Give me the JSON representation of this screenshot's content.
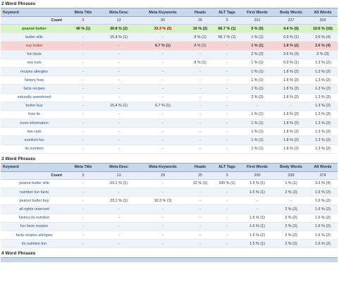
{
  "sections": [
    {
      "title": "2 Word Phrases",
      "headers": [
        "Keyword",
        "Meta Title",
        "Meta Desc",
        "Meta Keywords",
        "Heads",
        "ALT Tags",
        "First Words",
        "Body Words",
        "All Words"
      ],
      "count": {
        "label": "Count",
        "values": [
          "5",
          "13",
          "30",
          "25",
          "3",
          "201",
          "227",
          "303"
        ]
      },
      "rows": [
        {
          "keyword": "peanut butter",
          "values": [
            "40 % (1)",
            "30.8 % (2)",
            "33.3 % (5)",
            "16 % (2)",
            "66.7 % (1)",
            "5 % (5)",
            "4.4 % (5)",
            "10.6 % (16)"
          ],
          "style": "green"
        },
        {
          "keyword": "butter ville",
          "values": [
            "-",
            "15.4 % (1)",
            "-",
            "8 % (1)",
            "66.7 % (1)",
            "1 % (1)",
            "0.9 % (1)",
            "2.6 % (4)"
          ],
          "style": ""
        },
        {
          "keyword": "soy butter",
          "values": [
            "-",
            "-",
            "6.7 % (1)",
            "8 % (1)",
            "-",
            "1 % (1)",
            "1.8 % (2)",
            "2.6 % (4)"
          ],
          "style": "pink"
        },
        {
          "keyword": "fun facts",
          "values": [
            "-",
            "-",
            "-",
            "-",
            "-",
            "2 % (2)",
            "2.6 % (3)",
            "2 % (3)"
          ],
          "style": ""
        },
        {
          "keyword": "soy nuts",
          "values": [
            "-",
            "-",
            "-",
            "8 % (1)",
            "-",
            "1 % (1)",
            "0.9 % (1)",
            "1.3 % (2)"
          ],
          "style": ""
        },
        {
          "keyword": "recipes allergies",
          "values": [
            "-",
            "-",
            "-",
            "-",
            "-",
            "1 % (1)",
            "1.8 % (2)",
            "1.3 % (2)"
          ],
          "style": ""
        },
        {
          "keyword": "history how",
          "values": [
            "-",
            "-",
            "-",
            "-",
            "-",
            "1 % (1)",
            "1.8 % (2)",
            "1.3 % (2)"
          ],
          "style": ""
        },
        {
          "keyword": "facts recipes",
          "values": [
            "-",
            "-",
            "-",
            "-",
            "-",
            "1 % (1)",
            "1.8 % (2)",
            "1.3 % (2)"
          ],
          "style": ""
        },
        {
          "keyword": "naturally sweetened",
          "values": [
            "-",
            "-",
            "-",
            "-",
            "-",
            "2 % (2)",
            "1.8 % (2)",
            "1.3 % (2)"
          ],
          "style": ""
        },
        {
          "keyword": "butter buy",
          "values": [
            "-",
            "15.4 % (1)",
            "6.7 % (1)",
            "-",
            "-",
            "-",
            "-",
            "1.3 % (2)"
          ],
          "style": ""
        },
        {
          "keyword": "how its",
          "values": [
            "-",
            "-",
            "-",
            "-",
            "-",
            "1 % (1)",
            "1.8 % (2)",
            "1.3 % (2)"
          ],
          "style": ""
        },
        {
          "keyword": "more information",
          "values": [
            "-",
            "-",
            "-",
            "-",
            "-",
            "1 % (1)",
            "1.8 % (2)",
            "1.3 % (2)"
          ],
          "style": ""
        },
        {
          "keyword": "low carb",
          "values": [
            "-",
            "-",
            "-",
            "-",
            "-",
            "1 % (1)",
            "1.8 % (2)",
            "1.3 % (2)"
          ],
          "style": ""
        },
        {
          "keyword": "nutrition fun",
          "values": [
            "-",
            "-",
            "-",
            "-",
            "-",
            "1 % (1)",
            "1.8 % (2)",
            "1.3 % (2)"
          ],
          "style": ""
        },
        {
          "keyword": "its nutrition",
          "values": [
            "-",
            "-",
            "-",
            "-",
            "-",
            "1 % (1)",
            "1.8 % (2)",
            "1.3 % (2)"
          ],
          "style": ""
        }
      ]
    },
    {
      "title": "3 Word Phrases",
      "headers": [
        "Keyword",
        "Meta Title",
        "Meta Desc",
        "Meta Keywords",
        "Heads",
        "ALT Tags",
        "First Words",
        "Body Words",
        "All Words"
      ],
      "count": {
        "label": "Count",
        "values": [
          "5",
          "13",
          "29",
          "25",
          "3",
          "200",
          "299",
          "374"
        ]
      },
      "rows": [
        {
          "keyword": "peanut butter ville",
          "values": [
            "-",
            "23.1 % (1)",
            "-",
            "12 % (1)",
            "100 % (1)",
            "1.5 % (1)",
            "1 % (1)",
            "3.2 % (4)"
          ],
          "style": ""
        },
        {
          "keyword": "nutrition fun facts",
          "values": [
            "-",
            "-",
            "-",
            "-",
            "-",
            "1.5 % (1)",
            "2 % (2)",
            "1.6 % (2)"
          ],
          "style": ""
        },
        {
          "keyword": "peanut butter buy",
          "values": [
            "-",
            "23.1 % (1)",
            "10.3 % (1)",
            "-",
            "-",
            "-",
            "-",
            "1.6 % (2)"
          ],
          "style": ""
        },
        {
          "keyword": "all rights reserved",
          "values": [
            "-",
            "-",
            "-",
            "-",
            "-",
            "-",
            "2 % (2)",
            "1.6 % (2)"
          ],
          "style": ""
        },
        {
          "keyword": "history its nutrition",
          "values": [
            "-",
            "-",
            "-",
            "-",
            "-",
            "1.5 % (1)",
            "2 % (2)",
            "1.6 % (2)"
          ],
          "style": ""
        },
        {
          "keyword": "fun facts recipes",
          "values": [
            "-",
            "-",
            "-",
            "-",
            "-",
            "1.5 % (1)",
            "2 % (2)",
            "1.6 % (2)"
          ],
          "style": ""
        },
        {
          "keyword": "facts recipes allergies",
          "values": [
            "-",
            "-",
            "-",
            "-",
            "-",
            "1.5 % (1)",
            "2 % (2)",
            "1.6 % (2)"
          ],
          "style": ""
        },
        {
          "keyword": "its nutrition fun",
          "values": [
            "-",
            "-",
            "-",
            "-",
            "-",
            "1.5 % (1)",
            "2 % (2)",
            "1.6 % (2)"
          ],
          "style": ""
        }
      ]
    },
    {
      "title": "4 Word Phrases"
    }
  ],
  "colors": {
    "header_bg": "#c8d7e9",
    "highlight_green": "#d6f5c2",
    "highlight_pink": "#f6d4d4",
    "count_red": "#c00000"
  }
}
